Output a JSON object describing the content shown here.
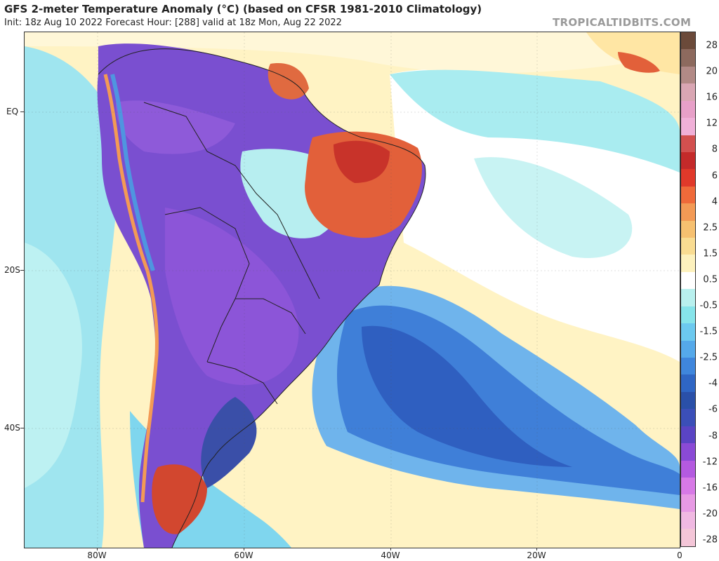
{
  "header": {
    "title": "GFS 2-meter Temperature Anomaly (°C) (based on CFSR 1981-2010 Climatology)",
    "subtitle": "Init: 18z Aug 10 2022   Forecast Hour: [288]   valid at 18z Mon, Aug 22 2022",
    "brand": "TROPICALTIDBITS.COM"
  },
  "map": {
    "lat_labels": [
      "EQ",
      "20S",
      "40S"
    ],
    "lon_labels": [
      "80W",
      "60W",
      "40W",
      "20W",
      "0"
    ]
  },
  "colorbar": {
    "labels": [
      "28",
      "20",
      "16",
      "12",
      "8",
      "6",
      "4",
      "2.5",
      "1.5",
      "0.5",
      "-0.5",
      "-1.5",
      "-2.5",
      "-4",
      "-6",
      "-8",
      "-12",
      "-16",
      "-20",
      "-28"
    ],
    "colors": [
      "#6b4a3a",
      "#8d6a5e",
      "#b28a86",
      "#d9a6b3",
      "#e7a0c8",
      "#f0b0d8",
      "#d2504f",
      "#c42a2a",
      "#e0392a",
      "#ef6a3a",
      "#f39a55",
      "#f6c070",
      "#f9dc92",
      "#fdf1bd",
      "#ffffff",
      "#b8f0ee",
      "#86e4ea",
      "#6cc9ef",
      "#55a9ea",
      "#3f86dc",
      "#2f66c4",
      "#2a50a8",
      "#3b4fb8",
      "#5a44c4",
      "#8a4ad6",
      "#b45ae0",
      "#d779e6",
      "#e79ae4",
      "#f0b9e2",
      "#f4c6d8"
    ]
  },
  "colors": {
    "ocean_warm": "#fff4c6",
    "ocean_neutral": "#ffffff",
    "cool_light": "#9ae6ee",
    "cool_mid": "#4f95e0",
    "cool_deep": "#2f5fc0",
    "land_cold": "#7a4fd0",
    "land_very_cold": "#9a5ae0",
    "warm_land": "#e2603a",
    "hot_land": "#c4322a"
  }
}
